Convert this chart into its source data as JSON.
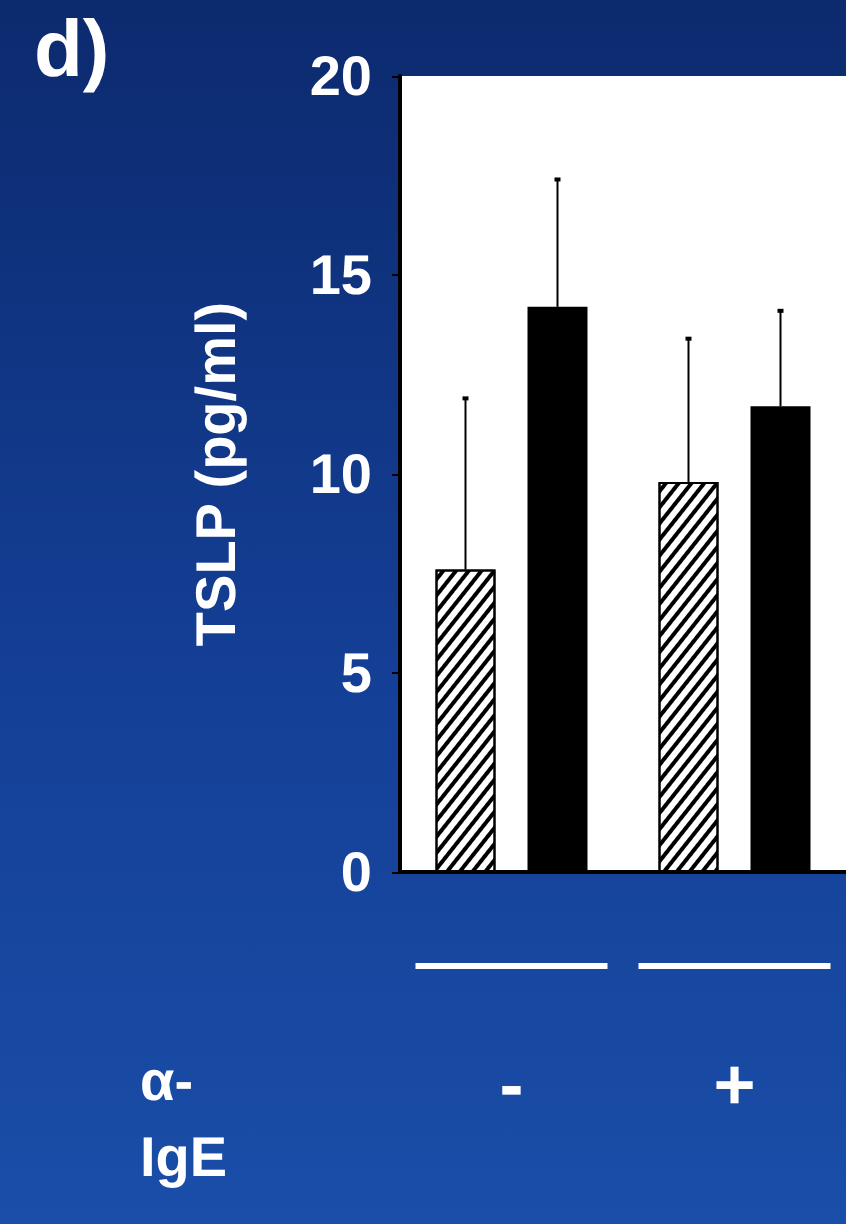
{
  "chart_data": {
    "type": "bar",
    "title": "d)",
    "ylabel": "TSLP (pg/ml)",
    "xlabel": "α-IgE",
    "categories": [
      "-",
      "+"
    ],
    "series": [
      {
        "color": "#ffffff",
        "values": [
          7.6,
          9.8
        ],
        "errors": [
          [
            7.6,
            11.9
          ],
          [
            9.8,
            13.4
          ]
        ]
      },
      {
        "color": "#000000",
        "values": [
          14.2,
          11.7
        ],
        "errors": [
          [
            14.2,
            17.4
          ],
          [
            11.7,
            14.1
          ]
        ]
      }
    ],
    "ylim": [
      0,
      20
    ],
    "yticks": [
      0,
      5,
      10,
      15,
      20
    ]
  }
}
